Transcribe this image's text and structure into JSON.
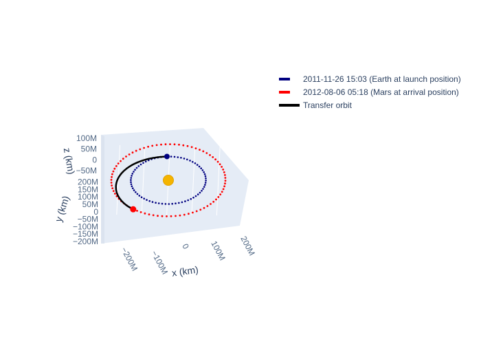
{
  "chart_data": {
    "type": "scatter3d",
    "legend_placement": "top-right",
    "axes": {
      "x": {
        "title": "x (km)",
        "ticks": [
          "−200M",
          "−100M",
          "0",
          "100M",
          "200M"
        ],
        "range": [
          -250000000,
          250000000
        ]
      },
      "y": {
        "title": "y (km)",
        "ticks": [
          "−200M",
          "−150M",
          "−100M",
          "−50M",
          "0",
          "50M",
          "100M",
          "150M",
          "200M"
        ],
        "range": [
          -220000000,
          220000000
        ]
      },
      "z": {
        "title": "z (km)",
        "ticks": [
          "−50M",
          "0",
          "50M",
          "100M"
        ],
        "range": [
          -60000000,
          110000000
        ]
      }
    },
    "grid": true,
    "sun": {
      "x": 0,
      "y": 0,
      "z": 0,
      "color": "#f4b400"
    },
    "series": [
      {
        "name": "2011-11-26 15:03 (Earth at launch position)",
        "style": "dotted",
        "color": "#000080",
        "orbit_radius_km": 150000000,
        "marker_position_km": [
          -10000000,
          150000000,
          0
        ]
      },
      {
        "name": "2012-08-06 05:18 (Mars at arrival position)",
        "style": "dotted",
        "color": "#ff0000",
        "orbit_radius_km": 228000000,
        "marker_position_km": [
          -135000000,
          -185000000,
          0
        ]
      },
      {
        "name": "Transfer orbit",
        "style": "solid",
        "color": "#000000",
        "from_km": [
          -10000000,
          150000000,
          0
        ],
        "to_km": [
          -135000000,
          -185000000,
          0
        ]
      }
    ]
  }
}
